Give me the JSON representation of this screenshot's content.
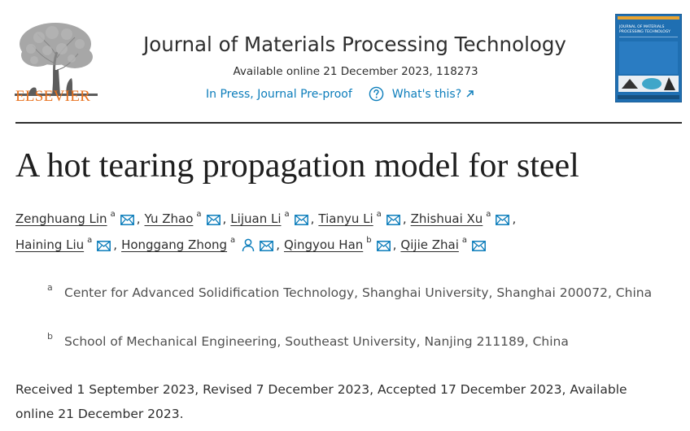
{
  "header": {
    "publisher": "ELSEVIER",
    "journal_title": "Journal of Materials Processing Technology",
    "available_line": "Available online 21 December 2023, 118273",
    "status_link": "In Press, Journal Pre-proof",
    "help_label": "What's this?",
    "cover_text": "JOURNAL OF MATERIALS PROCESSING TECHNOLOGY"
  },
  "article": {
    "title": "A hot tearing propagation model for steel"
  },
  "authors": [
    {
      "name": "Zenghuang Lin",
      "aff": "a"
    },
    {
      "name": "Yu Zhao",
      "aff": "a"
    },
    {
      "name": "Lijuan Li",
      "aff": "a"
    },
    {
      "name": "Tianyu Li",
      "aff": "a"
    },
    {
      "name": "Zhishuai Xu",
      "aff": "a"
    },
    {
      "name": "Haining Liu",
      "aff": "a"
    },
    {
      "name": "Honggang Zhong",
      "aff": "a"
    },
    {
      "name": "Qingyou Han",
      "aff": "b"
    },
    {
      "name": "Qijie Zhai",
      "aff": "a"
    }
  ],
  "affiliations": [
    {
      "label": "a",
      "text": "Center for Advanced Solidification Technology, Shanghai University, Shanghai 200072, China"
    },
    {
      "label": "b",
      "text": "School of Mechanical Engineering, Southeast University, Nanjing 211189, China"
    }
  ],
  "dates": "Received 1 September 2023, Revised 7 December 2023, Accepted 17 December 2023, Available online 21 December 2023.",
  "colors": {
    "accent_link": "#0c7dbb",
    "publisher_orange": "#e9711c",
    "text": "#2e2e2e"
  }
}
